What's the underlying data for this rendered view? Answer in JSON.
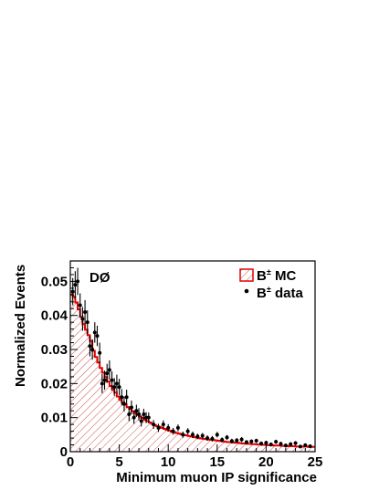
{
  "chart_data": {
    "type": "histogram",
    "experiment_label": "DØ",
    "xlabel": "Minimum muon IP significance",
    "ylabel": "Normalized Events",
    "xlim": [
      0,
      25
    ],
    "ylim": [
      0,
      0.056
    ],
    "xticks": [
      0,
      5,
      10,
      15,
      20,
      25
    ],
    "xtick_labels": [
      "0",
      "5",
      "10",
      "15",
      "20",
      "25"
    ],
    "yticks": [
      0,
      0.01,
      0.02,
      0.03,
      0.04,
      0.05
    ],
    "ytick_labels": [
      "0",
      "0.01",
      "0.02",
      "0.03",
      "0.04",
      "0.05"
    ],
    "legend": {
      "placement": "top-right",
      "entries": [
        {
          "prefix": "B",
          "superscript": "±",
          "suffix": " MC",
          "style": "hatched-red-box"
        },
        {
          "prefix": "B",
          "superscript": "±",
          "suffix": " data",
          "style": "black-dot"
        }
      ]
    },
    "mc_histogram": {
      "name": "B± MC",
      "color": "#e00000",
      "bin_width": 0.25,
      "values": [
        0.0462,
        0.0455,
        0.0438,
        0.0418,
        0.0396,
        0.0374,
        0.0358,
        0.0342,
        0.0325,
        0.0296,
        0.0278,
        0.0262,
        0.0246,
        0.0232,
        0.0219,
        0.0206,
        0.0193,
        0.0182,
        0.0173,
        0.0162,
        0.0152,
        0.0145,
        0.0138,
        0.0131,
        0.0126,
        0.0119,
        0.0113,
        0.0108,
        0.0103,
        0.0099,
        0.0094,
        0.009,
        0.0086,
        0.0082,
        0.0078,
        0.0075,
        0.0073,
        0.007,
        0.0067,
        0.0064,
        0.0062,
        0.0059,
        0.0057,
        0.0055,
        0.0053,
        0.0051,
        0.0049,
        0.0048,
        0.0046,
        0.0045,
        0.0043,
        0.0042,
        0.004,
        0.0039,
        0.0038,
        0.0037,
        0.0036,
        0.0035,
        0.0034,
        0.0033,
        0.0032,
        0.0031,
        0.003,
        0.0029,
        0.0028,
        0.0028,
        0.0027,
        0.0026,
        0.0026,
        0.0025,
        0.0024,
        0.0024,
        0.0023,
        0.0023,
        0.0022,
        0.0022,
        0.0021,
        0.0021,
        0.002,
        0.002,
        0.0019,
        0.0019,
        0.0019,
        0.0018,
        0.0018,
        0.0018,
        0.0017,
        0.0017,
        0.0017,
        0.0016,
        0.0016,
        0.0016,
        0.0015,
        0.0015,
        0.0015,
        0.0015,
        0.0015,
        0.0014,
        0.0014,
        0.0014
      ]
    },
    "data_points": {
      "name": "B± data",
      "color": "#000000",
      "x": [
        0.25,
        0.5,
        0.75,
        1.0,
        1.25,
        1.5,
        1.75,
        2.0,
        2.25,
        2.5,
        2.75,
        3.0,
        3.25,
        3.5,
        3.75,
        4.0,
        4.25,
        4.5,
        4.75,
        5.0,
        5.25,
        5.5,
        5.75,
        6.0,
        6.25,
        6.5,
        6.75,
        7.0,
        7.25,
        7.5,
        7.75,
        8.0,
        8.5,
        9.0,
        9.5,
        10.0,
        10.5,
        11.0,
        11.5,
        12.0,
        12.5,
        13.0,
        13.5,
        14.0,
        14.5,
        15.0,
        15.5,
        16.0,
        16.5,
        17.0,
        17.5,
        18.0,
        18.5,
        19.0,
        19.5,
        20.0,
        20.5,
        21.0,
        21.5,
        22.0,
        22.5,
        23.0,
        23.5,
        24.0,
        24.5
      ],
      "y": [
        0.047,
        0.049,
        0.05,
        0.043,
        0.039,
        0.041,
        0.038,
        0.031,
        0.03,
        0.035,
        0.034,
        0.029,
        0.02,
        0.021,
        0.023,
        0.024,
        0.021,
        0.019,
        0.02,
        0.019,
        0.016,
        0.014,
        0.016,
        0.011,
        0.013,
        0.01,
        0.012,
        0.011,
        0.009,
        0.011,
        0.01,
        0.01,
        0.008,
        0.007,
        0.008,
        0.007,
        0.006,
        0.007,
        0.005,
        0.006,
        0.005,
        0.0045,
        0.0047,
        0.004,
        0.0038,
        0.005,
        0.0035,
        0.0042,
        0.0031,
        0.0033,
        0.0036,
        0.0028,
        0.003,
        0.0032,
        0.0024,
        0.0026,
        0.0021,
        0.0029,
        0.0023,
        0.0018,
        0.0022,
        0.0025,
        0.0015,
        0.0019,
        0.0016
      ],
      "yerr": [
        0.004,
        0.004,
        0.004,
        0.0035,
        0.0035,
        0.0035,
        0.0035,
        0.003,
        0.003,
        0.003,
        0.003,
        0.003,
        0.0028,
        0.0028,
        0.0028,
        0.0028,
        0.0026,
        0.0026,
        0.0026,
        0.0024,
        0.0024,
        0.0022,
        0.0022,
        0.002,
        0.002,
        0.0018,
        0.0018,
        0.0018,
        0.0016,
        0.0016,
        0.0016,
        0.0015,
        0.0013,
        0.0012,
        0.0012,
        0.0011,
        0.001,
        0.001,
        0.0009,
        0.0009,
        0.0009,
        0.0008,
        0.0008,
        0.0008,
        0.0008,
        0.0008,
        0.0007,
        0.0007,
        0.0007,
        0.0007,
        0.0007,
        0.0006,
        0.0006,
        0.0006,
        0.0006,
        0.0006,
        0.0006,
        0.0006,
        0.0006,
        0.0006,
        0.0006,
        0.0006,
        0.0005,
        0.0005,
        0.0005
      ]
    }
  }
}
